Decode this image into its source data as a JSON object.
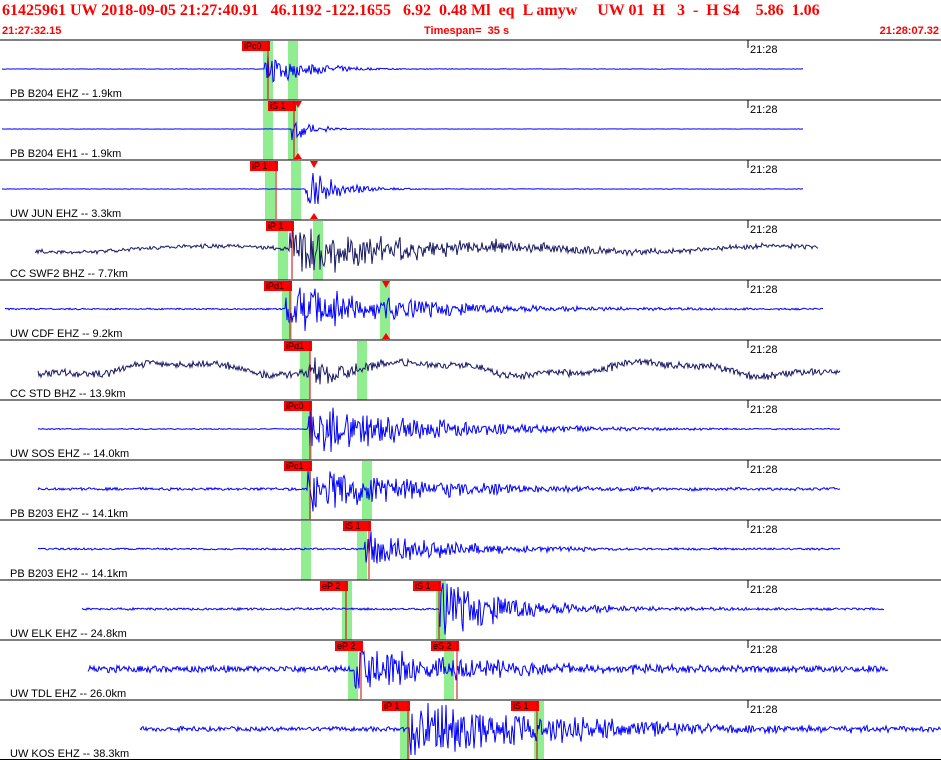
{
  "header": {
    "title": "61425961 UW 2018-09-05 21:27:40.91   46.1192 -122.1655   6.92  0.48 Ml  eq  L amyw     UW 01  H   3  -  H S4    5.86  1.06",
    "start_time": "21:27:32.15",
    "timespan": "Timespan=  35 s",
    "end_time": "21:28:07.32"
  },
  "minute_label": "21:28",
  "colors": {
    "header_text": "#ff0000",
    "trace_blue": "#0000ff",
    "trace_dark": "#1a1a66",
    "pick_box": "#ff0000",
    "pick_bar": "#90ee90",
    "pick_arrow": "#ff0000"
  },
  "traces": [
    {
      "label": "PB B204 EHZ -- 1.9km",
      "color": "blue",
      "picks": [
        {
          "text": "iPc0",
          "marker": "box"
        },
        {
          "text": "",
          "marker": "bar"
        }
      ]
    },
    {
      "label": "PB B204 EH1 -- 1.9km",
      "color": "blue",
      "picks": [
        {
          "text": "iS 1",
          "marker": "box"
        },
        {
          "text": "",
          "marker": "arrow"
        }
      ]
    },
    {
      "label": "UW JUN EHZ -- 3.3km",
      "color": "blue",
      "picks": [
        {
          "text": "iP 1",
          "marker": "box"
        },
        {
          "text": "",
          "marker": "arrow"
        }
      ]
    },
    {
      "label": "CC SWF2 BHZ -- 7.7km",
      "color": "dark",
      "picks": [
        {
          "text": "iP 1",
          "marker": "box"
        },
        {
          "text": "",
          "marker": "bar"
        }
      ]
    },
    {
      "label": "UW CDF EHZ -- 9.2km",
      "color": "blue",
      "picks": [
        {
          "text": "iPd1",
          "marker": "box"
        },
        {
          "text": "",
          "marker": "arrow"
        }
      ]
    },
    {
      "label": "CC STD BHZ -- 13.9km",
      "color": "dark",
      "picks": [
        {
          "text": "iPd1",
          "marker": "box"
        },
        {
          "text": "",
          "marker": "bar"
        }
      ]
    },
    {
      "label": "UW SOS EHZ -- 14.0km",
      "color": "blue",
      "picks": [
        {
          "text": "iPc0",
          "marker": "box"
        }
      ]
    },
    {
      "label": "PB B203 EHZ -- 14.1km",
      "color": "blue",
      "picks": [
        {
          "text": "iPc1",
          "marker": "box"
        }
      ]
    },
    {
      "label": "PB B203 EH2 -- 14.1km",
      "color": "blue",
      "picks": [
        {
          "text": "iS 1",
          "marker": "box"
        }
      ]
    },
    {
      "label": "UW ELK EHZ -- 24.8km",
      "color": "blue",
      "picks": [
        {
          "text": "eP 2",
          "marker": "box"
        },
        {
          "text": "iS 1",
          "marker": "box"
        }
      ]
    },
    {
      "label": "UW TDL EHZ -- 26.0km",
      "color": "blue",
      "picks": [
        {
          "text": "eP 2",
          "marker": "box"
        },
        {
          "text": "eS 2",
          "marker": "box"
        }
      ]
    },
    {
      "label": "UW KOS EHZ -- 38.3km",
      "color": "blue",
      "picks": [
        {
          "text": "iP 1",
          "marker": "box"
        },
        {
          "text": "iS 1",
          "marker": "box"
        }
      ]
    }
  ]
}
